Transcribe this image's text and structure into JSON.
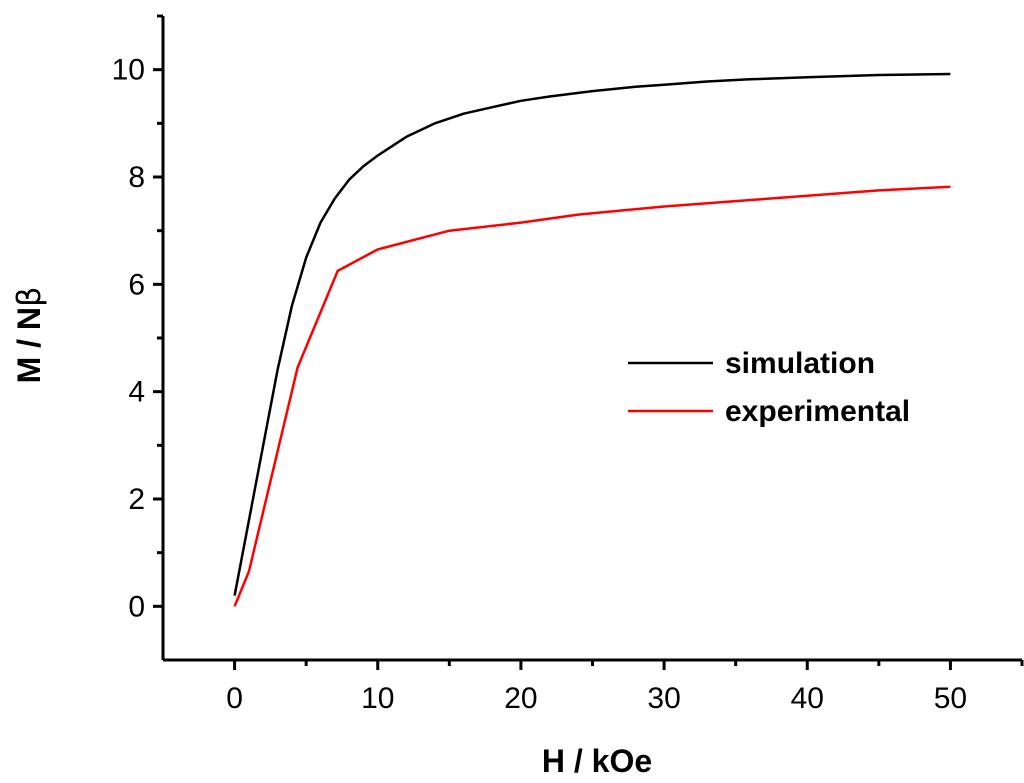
{
  "chart_data": {
    "type": "line",
    "xlabel": "H / kOe",
    "ylabel_main": "M / N",
    "ylabel_symbol": "β",
    "xlim": [
      -5,
      55
    ],
    "ylim": [
      -1,
      11
    ],
    "x_ticks": [
      0,
      10,
      20,
      30,
      40,
      50
    ],
    "y_ticks": [
      0,
      2,
      4,
      6,
      8,
      10
    ],
    "grid": false,
    "legend_position": "center-right",
    "series": [
      {
        "name": "simulation",
        "color": "#000000",
        "x": [
          0,
          1,
          2,
          3,
          4,
          5,
          6,
          7,
          8,
          9,
          10,
          12,
          14,
          16,
          18,
          20,
          22,
          25,
          28,
          30,
          33,
          36,
          40,
          45,
          50
        ],
        "y": [
          0.2,
          1.6,
          3.0,
          4.4,
          5.6,
          6.5,
          7.15,
          7.6,
          7.95,
          8.2,
          8.4,
          8.75,
          9.0,
          9.18,
          9.3,
          9.42,
          9.5,
          9.6,
          9.68,
          9.72,
          9.78,
          9.82,
          9.86,
          9.9,
          9.92
        ]
      },
      {
        "name": "experimental",
        "color": "#ff0000",
        "x": [
          0,
          1,
          4.4,
          7.2,
          10,
          15,
          20,
          24,
          30,
          35,
          40,
          45,
          50
        ],
        "y": [
          0,
          0.65,
          4.45,
          6.25,
          6.65,
          7.0,
          7.15,
          7.3,
          7.45,
          7.55,
          7.65,
          7.75,
          7.82
        ]
      }
    ]
  }
}
